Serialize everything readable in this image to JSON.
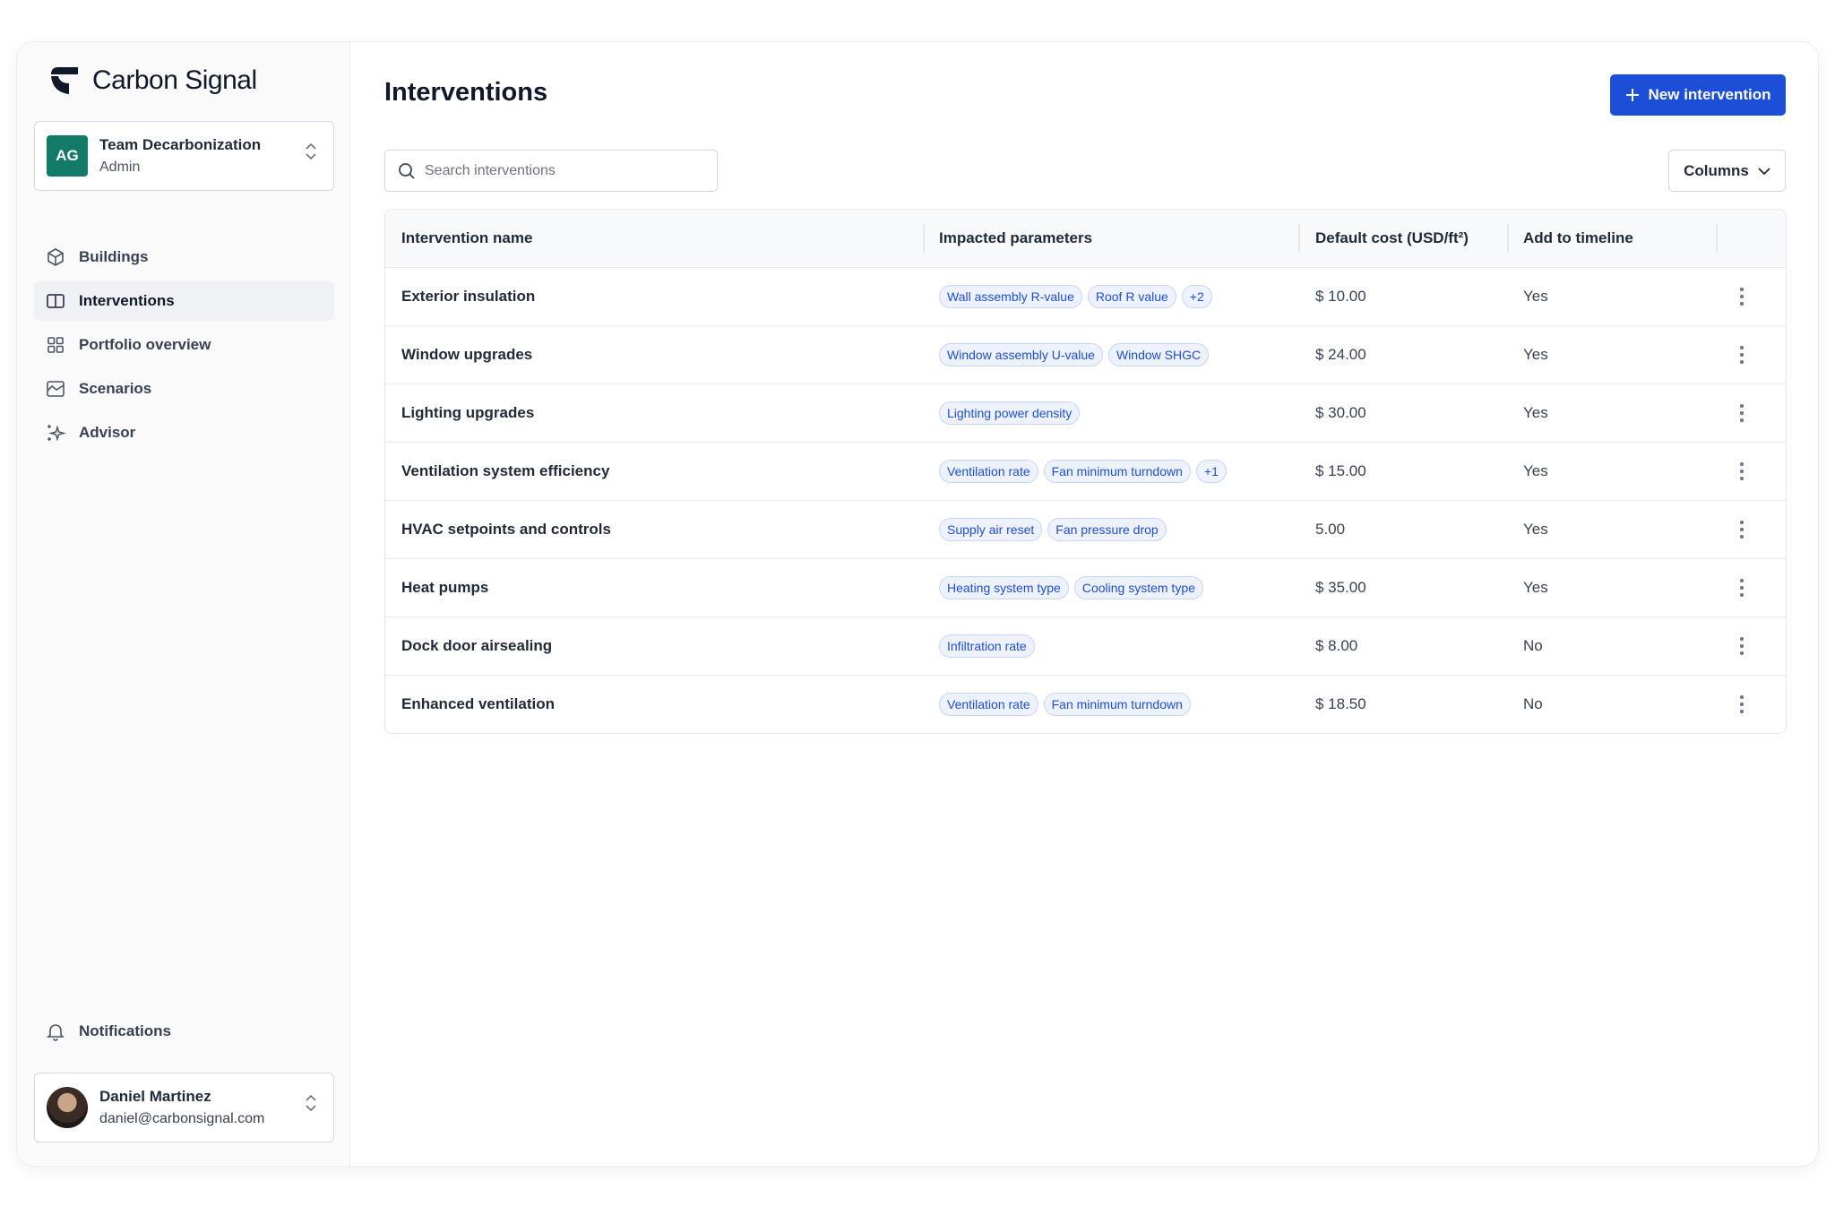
{
  "app": {
    "name": "Carbon Signal"
  },
  "team": {
    "initials": "AG",
    "name": "Team Decarbonization",
    "role": "Admin",
    "color": "#137a68"
  },
  "nav": [
    {
      "label": "Buildings",
      "icon": "cube-icon"
    },
    {
      "label": "Interventions",
      "icon": "book-icon",
      "active": true
    },
    {
      "label": "Portfolio overview",
      "icon": "grid-icon"
    },
    {
      "label": "Scenarios",
      "icon": "chart-icon"
    },
    {
      "label": "Advisor",
      "icon": "sparkles-icon"
    }
  ],
  "notifications": {
    "label": "Notifications"
  },
  "user": {
    "name": "Daniel Martinez",
    "email": "daniel@carbonsignal.com"
  },
  "page": {
    "title": "Interventions",
    "new_button": "New intervention",
    "search_placeholder": "Search interventions",
    "columns_button": "Columns",
    "accent": "#1d4ed8"
  },
  "table": {
    "headers": [
      "Intervention name",
      "Impacted parameters",
      "Default cost (USD/ft²)",
      "Add to timeline"
    ],
    "rows": [
      {
        "name": "Exterior insulation",
        "params": [
          "Wall assembly R-value",
          "Roof R value",
          "+2"
        ],
        "cost": "$ 10.00",
        "timeline": "Yes"
      },
      {
        "name": "Window upgrades",
        "params": [
          "Window assembly U-value",
          "Window SHGC"
        ],
        "cost": "$ 24.00",
        "timeline": "Yes"
      },
      {
        "name": "Lighting upgrades",
        "params": [
          "Lighting power density"
        ],
        "cost": "$ 30.00",
        "timeline": "Yes"
      },
      {
        "name": "Ventilation system efficiency",
        "params": [
          "Ventilation rate",
          "Fan minimum turndown",
          "+1"
        ],
        "cost": "$ 15.00",
        "timeline": "Yes"
      },
      {
        "name": "HVAC setpoints and controls",
        "params": [
          "Supply air reset",
          "Fan pressure drop"
        ],
        "cost": "5.00",
        "timeline": "Yes"
      },
      {
        "name": "Heat pumps",
        "params": [
          "Heating system type",
          "Cooling system type"
        ],
        "cost": "$ 35.00",
        "timeline": "Yes"
      },
      {
        "name": "Dock door airsealing",
        "params": [
          "Infiltration rate"
        ],
        "cost": "$ 8.00",
        "timeline": "No"
      },
      {
        "name": "Enhanced ventilation",
        "params": [
          "Ventilation rate",
          "Fan minimum turndown"
        ],
        "cost": "$ 18.50",
        "timeline": "No"
      }
    ]
  }
}
